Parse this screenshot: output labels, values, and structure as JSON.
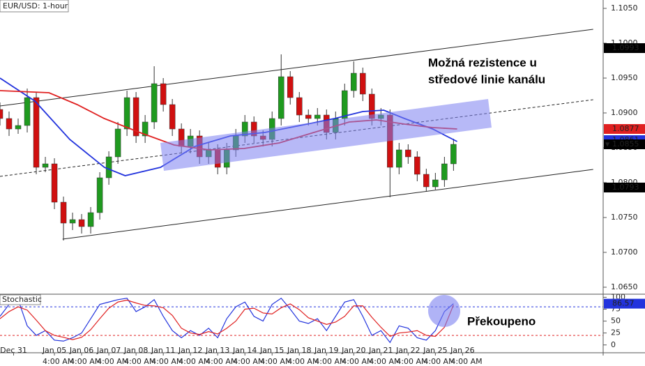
{
  "chart_data": [
    {
      "type": "candlestick",
      "title": "EUR/USD: 1-hour",
      "annotation": [
        "Možná rezistence u",
        "středové linie kanálu"
      ],
      "xlim": [
        0,
        66.5
      ],
      "ylim": [
        1.064,
        1.1062
      ],
      "yticks": [
        {
          "value": 1.065,
          "label": "1.0650"
        },
        {
          "value": 1.07,
          "label": "1.0700"
        },
        {
          "value": 1.075,
          "label": "1.0750"
        },
        {
          "value": 1.08,
          "label": "1.0800"
        },
        {
          "value": 1.085,
          "label": "1.0850"
        },
        {
          "value": 1.09,
          "label": "1.0900"
        },
        {
          "value": 1.095,
          "label": "1.0950"
        },
        {
          "value": 1.1,
          "label": "1.1000"
        },
        {
          "value": 1.105,
          "label": "1.1050"
        }
      ],
      "up_color": "#1f9a1f",
      "down_color": "#d01010",
      "x": [
        0,
        1,
        2,
        3,
        4,
        5,
        6,
        7,
        8,
        9,
        10,
        11,
        12,
        13,
        14,
        15,
        16,
        17,
        18,
        19,
        20,
        21,
        22,
        23,
        24,
        25,
        26,
        27,
        28,
        29,
        30,
        31,
        32,
        33,
        34,
        35,
        36,
        37,
        38,
        39,
        40,
        41,
        42,
        43,
        44,
        45,
        46,
        47,
        48,
        49,
        50
      ],
      "open": [
        1.0905,
        1.0892,
        1.0877,
        1.0882,
        1.0922,
        1.0822,
        1.0827,
        1.0772,
        1.0742,
        1.0747,
        1.0737,
        1.0757,
        1.0807,
        1.0837,
        1.0877,
        1.0922,
        1.0867,
        1.0887,
        1.0942,
        1.0912,
        1.0877,
        1.0852,
        1.0867,
        1.0837,
        1.0847,
        1.0822,
        1.0847,
        1.0867,
        1.0887,
        1.0867,
        1.0862,
        1.0892,
        1.0952,
        1.0922,
        1.0897,
        1.0892,
        1.0897,
        1.0872,
        1.0892,
        1.0932,
        1.0957,
        1.0927,
        1.0892,
        1.0897,
        1.0822,
        1.0847,
        1.0837,
        1.0812,
        1.0794,
        1.0804,
        1.0827
      ],
      "high": [
        1.0915,
        1.0902,
        1.0892,
        1.0935,
        1.093,
        1.0837,
        1.0835,
        1.078,
        1.0757,
        1.0755,
        1.0765,
        1.0815,
        1.0845,
        1.0887,
        1.0932,
        1.093,
        1.0897,
        1.0967,
        1.095,
        1.092,
        1.0885,
        1.0877,
        1.0875,
        1.0857,
        1.0855,
        1.0857,
        1.0877,
        1.0897,
        1.0895,
        1.0875,
        1.0902,
        1.0984,
        1.096,
        1.093,
        1.0905,
        1.0907,
        1.0905,
        1.0902,
        1.0942,
        1.0974,
        1.0965,
        1.0935,
        1.0907,
        1.0905,
        1.0857,
        1.0855,
        1.0845,
        1.082,
        1.0814,
        1.0837,
        1.0863
      ],
      "low": [
        1.0882,
        1.0867,
        1.087,
        1.0872,
        1.0812,
        1.0815,
        1.0762,
        1.0717,
        1.0732,
        1.0727,
        1.0727,
        1.0747,
        1.0797,
        1.0827,
        1.0867,
        1.0857,
        1.0857,
        1.0877,
        1.0902,
        1.0867,
        1.0842,
        1.0842,
        1.0827,
        1.0827,
        1.0812,
        1.0812,
        1.0837,
        1.0857,
        1.0857,
        1.0852,
        1.0852,
        1.0882,
        1.0912,
        1.0887,
        1.0882,
        1.0882,
        1.0862,
        1.0862,
        1.0882,
        1.0922,
        1.0917,
        1.0882,
        1.0882,
        1.0779,
        1.0812,
        1.0827,
        1.0802,
        1.0788,
        1.079,
        1.0794,
        1.0817
      ],
      "close": [
        1.0892,
        1.0877,
        1.0882,
        1.0922,
        1.0822,
        1.0827,
        1.0772,
        1.0742,
        1.0747,
        1.0737,
        1.0757,
        1.0807,
        1.0837,
        1.0877,
        1.0922,
        1.0867,
        1.0887,
        1.0942,
        1.0912,
        1.0877,
        1.0852,
        1.0867,
        1.0837,
        1.0847,
        1.0822,
        1.0847,
        1.0867,
        1.0887,
        1.0867,
        1.0862,
        1.0892,
        1.0952,
        1.0922,
        1.0897,
        1.0892,
        1.0897,
        1.0872,
        1.0892,
        1.0932,
        1.0957,
        1.0927,
        1.0892,
        1.0897,
        1.0822,
        1.0847,
        1.0837,
        1.0812,
        1.0794,
        1.0804,
        1.0827,
        1.0855
      ],
      "moving_averages": [
        {
          "color": "#2233dd",
          "x": [
            0,
            3.85,
            7.69,
            11.5,
            13.8,
            17.7,
            21.5,
            25.4,
            29.2,
            33.1,
            36.9,
            40,
            42.3,
            44.6,
            47.7,
            50.4
          ],
          "values": [
            1.095,
            1.0917,
            1.0862,
            1.0822,
            1.081,
            1.0822,
            1.0852,
            1.0867,
            1.0872,
            1.0882,
            1.0892,
            1.0902,
            1.0904,
            1.0892,
            1.0877,
            1.0859
          ]
        },
        {
          "color": "#e02020",
          "x": [
            0,
            5.4,
            8.5,
            11.5,
            15.4,
            19.2,
            23.1,
            26.9,
            30.8,
            34.6,
            38.5,
            41.5,
            44.6,
            47.7,
            50.4
          ],
          "values": [
            1.0932,
            1.0929,
            1.0912,
            1.0892,
            1.0872,
            1.0854,
            1.0847,
            1.0849,
            1.0857,
            1.0872,
            1.0887,
            1.089,
            1.0884,
            1.0879,
            1.0877
          ]
        }
      ],
      "trendlines": [
        {
          "style": "solid",
          "x": [
            0,
            65.4
          ],
          "values": [
            1.091,
            1.102
          ]
        },
        {
          "style": "solid",
          "x": [
            6.9,
            65.4
          ],
          "values": [
            1.0719,
            1.0819
          ]
        },
        {
          "style": "dashed",
          "x": [
            0,
            65.4
          ],
          "values": [
            1.0809,
            1.0919
          ]
        }
      ],
      "price_tags": [
        {
          "value": 1.0993,
          "color": "#000000"
        },
        {
          "value": 1.0877,
          "color": "#e02020"
        },
        {
          "value": 1.0793,
          "color": "#000000"
        },
        {
          "value": 1.0861,
          "color": "#2233dd"
        },
        {
          "value": 1.0855,
          "color": "#000000",
          "marker": "▼"
        }
      ]
    },
    {
      "type": "line",
      "title": "Stochastic",
      "annotation": "Překoupeno",
      "xlim": [
        0,
        66.5
      ],
      "ylim": [
        -15,
        105
      ],
      "yticks": [
        100,
        75,
        50,
        25,
        0
      ],
      "xticks": [
        {
          "value": 1.5,
          "label": "Dec 31"
        },
        {
          "value": 6,
          "label": "Jan 05"
        },
        {
          "value": 9,
          "label": "Jan 06"
        },
        {
          "value": 12,
          "label": "Jan 07"
        },
        {
          "value": 15,
          "label": "Jan 08"
        },
        {
          "value": 18,
          "label": "Jan 11"
        },
        {
          "value": 21,
          "label": "Jan 12"
        },
        {
          "value": 24,
          "label": "Jan 13"
        },
        {
          "value": 27,
          "label": "Jan 14"
        },
        {
          "value": 30,
          "label": "Jan 15"
        },
        {
          "value": 33,
          "label": "Jan 18"
        },
        {
          "value": 36,
          "label": "Jan 19"
        },
        {
          "value": 39,
          "label": "Jan 20"
        },
        {
          "value": 42,
          "label": "Jan 21"
        },
        {
          "value": 45,
          "label": "Jan 22"
        },
        {
          "value": 48,
          "label": "Jan 25"
        },
        {
          "value": 51,
          "label": "Jan 26"
        }
      ],
      "time_labels": [
        "4:00 AM",
        "4:00 AM",
        "4:00 AM",
        "4:00 AM",
        "4:00 AM",
        "4:00 AM",
        "4:00 AM",
        "4:00 AM",
        "4:00 AM",
        "4:00 AM",
        "4:00 AM",
        "4:00 AM",
        "4:00 AM",
        "4:00 AM",
        "4:00 AM",
        "4:00 AM"
      ],
      "ref_lines": [
        {
          "value": 80,
          "color": "#2233dd"
        },
        {
          "value": 20,
          "color": "#e02020"
        }
      ],
      "price_tags": [
        {
          "value": 86.57,
          "color": "#2233dd"
        }
      ],
      "x": [
        0,
        1,
        2,
        3,
        4,
        5,
        6,
        7,
        8,
        9,
        10,
        11,
        12,
        13,
        14,
        15,
        16,
        17,
        18,
        19,
        20,
        21,
        22,
        23,
        24,
        25,
        26,
        27,
        28,
        29,
        30,
        31,
        32,
        33,
        34,
        35,
        36,
        37,
        38,
        39,
        40,
        41,
        42,
        43,
        44,
        45,
        46,
        47,
        48,
        49,
        50
      ],
      "series": [
        {
          "color": "#2233dd",
          "values": [
            60,
            85,
            95,
            40,
            20,
            30,
            10,
            8,
            15,
            25,
            55,
            85,
            90,
            95,
            98,
            70,
            80,
            95,
            60,
            30,
            15,
            30,
            20,
            35,
            15,
            55,
            80,
            90,
            60,
            50,
            85,
            98,
            75,
            50,
            45,
            55,
            30,
            60,
            90,
            95,
            60,
            20,
            30,
            5,
            40,
            35,
            15,
            10,
            30,
            70,
            86.57
          ]
        },
        {
          "color": "#e02020",
          "values": [
            55,
            70,
            80,
            73,
            52,
            30,
            20,
            16,
            11,
            16,
            32,
            55,
            77,
            90,
            94,
            88,
            83,
            82,
            78,
            62,
            35,
            25,
            22,
            28,
            23,
            35,
            50,
            75,
            77,
            67,
            65,
            78,
            86,
            74,
            57,
            50,
            43,
            48,
            60,
            82,
            82,
            58,
            37,
            18,
            25,
            27,
            30,
            20,
            18,
            37,
            84
          ]
        }
      ]
    }
  ]
}
